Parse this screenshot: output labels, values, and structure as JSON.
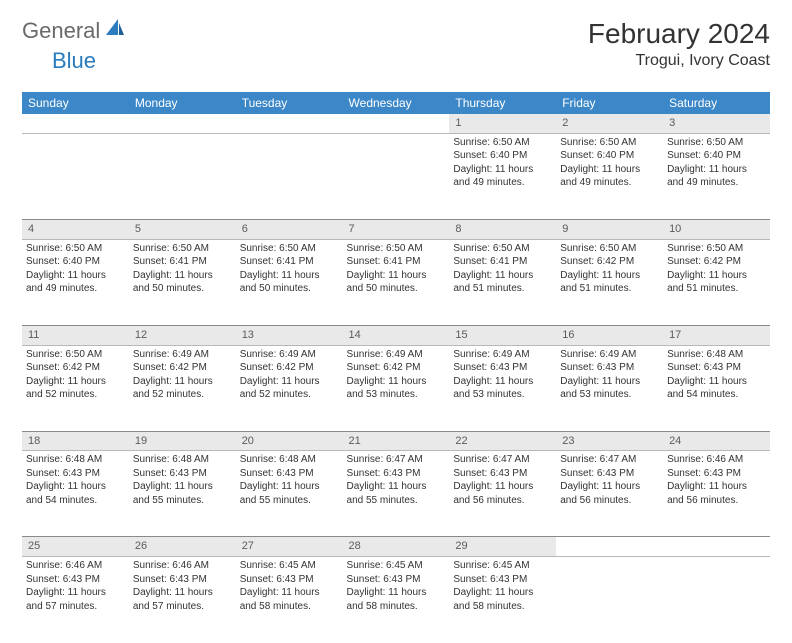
{
  "brand": {
    "general": "General",
    "blue": "Blue"
  },
  "title": {
    "month": "February 2024",
    "location": "Trogui, Ivory Coast"
  },
  "colors": {
    "header_bg": "#3b87c8",
    "header_fg": "#ffffff",
    "daynum_bg": "#e9e9e9",
    "text": "#333333",
    "logo_gray": "#6a6a6a",
    "logo_blue": "#2b7bbf"
  },
  "daysOfWeek": [
    "Sunday",
    "Monday",
    "Tuesday",
    "Wednesday",
    "Thursday",
    "Friday",
    "Saturday"
  ],
  "weeks": [
    [
      null,
      null,
      null,
      null,
      {
        "n": "1",
        "sr": "Sunrise: 6:50 AM",
        "ss": "Sunset: 6:40 PM",
        "d1": "Daylight: 11 hours",
        "d2": "and 49 minutes."
      },
      {
        "n": "2",
        "sr": "Sunrise: 6:50 AM",
        "ss": "Sunset: 6:40 PM",
        "d1": "Daylight: 11 hours",
        "d2": "and 49 minutes."
      },
      {
        "n": "3",
        "sr": "Sunrise: 6:50 AM",
        "ss": "Sunset: 6:40 PM",
        "d1": "Daylight: 11 hours",
        "d2": "and 49 minutes."
      }
    ],
    [
      {
        "n": "4",
        "sr": "Sunrise: 6:50 AM",
        "ss": "Sunset: 6:40 PM",
        "d1": "Daylight: 11 hours",
        "d2": "and 49 minutes."
      },
      {
        "n": "5",
        "sr": "Sunrise: 6:50 AM",
        "ss": "Sunset: 6:41 PM",
        "d1": "Daylight: 11 hours",
        "d2": "and 50 minutes."
      },
      {
        "n": "6",
        "sr": "Sunrise: 6:50 AM",
        "ss": "Sunset: 6:41 PM",
        "d1": "Daylight: 11 hours",
        "d2": "and 50 minutes."
      },
      {
        "n": "7",
        "sr": "Sunrise: 6:50 AM",
        "ss": "Sunset: 6:41 PM",
        "d1": "Daylight: 11 hours",
        "d2": "and 50 minutes."
      },
      {
        "n": "8",
        "sr": "Sunrise: 6:50 AM",
        "ss": "Sunset: 6:41 PM",
        "d1": "Daylight: 11 hours",
        "d2": "and 51 minutes."
      },
      {
        "n": "9",
        "sr": "Sunrise: 6:50 AM",
        "ss": "Sunset: 6:42 PM",
        "d1": "Daylight: 11 hours",
        "d2": "and 51 minutes."
      },
      {
        "n": "10",
        "sr": "Sunrise: 6:50 AM",
        "ss": "Sunset: 6:42 PM",
        "d1": "Daylight: 11 hours",
        "d2": "and 51 minutes."
      }
    ],
    [
      {
        "n": "11",
        "sr": "Sunrise: 6:50 AM",
        "ss": "Sunset: 6:42 PM",
        "d1": "Daylight: 11 hours",
        "d2": "and 52 minutes."
      },
      {
        "n": "12",
        "sr": "Sunrise: 6:49 AM",
        "ss": "Sunset: 6:42 PM",
        "d1": "Daylight: 11 hours",
        "d2": "and 52 minutes."
      },
      {
        "n": "13",
        "sr": "Sunrise: 6:49 AM",
        "ss": "Sunset: 6:42 PM",
        "d1": "Daylight: 11 hours",
        "d2": "and 52 minutes."
      },
      {
        "n": "14",
        "sr": "Sunrise: 6:49 AM",
        "ss": "Sunset: 6:42 PM",
        "d1": "Daylight: 11 hours",
        "d2": "and 53 minutes."
      },
      {
        "n": "15",
        "sr": "Sunrise: 6:49 AM",
        "ss": "Sunset: 6:43 PM",
        "d1": "Daylight: 11 hours",
        "d2": "and 53 minutes."
      },
      {
        "n": "16",
        "sr": "Sunrise: 6:49 AM",
        "ss": "Sunset: 6:43 PM",
        "d1": "Daylight: 11 hours",
        "d2": "and 53 minutes."
      },
      {
        "n": "17",
        "sr": "Sunrise: 6:48 AM",
        "ss": "Sunset: 6:43 PM",
        "d1": "Daylight: 11 hours",
        "d2": "and 54 minutes."
      }
    ],
    [
      {
        "n": "18",
        "sr": "Sunrise: 6:48 AM",
        "ss": "Sunset: 6:43 PM",
        "d1": "Daylight: 11 hours",
        "d2": "and 54 minutes."
      },
      {
        "n": "19",
        "sr": "Sunrise: 6:48 AM",
        "ss": "Sunset: 6:43 PM",
        "d1": "Daylight: 11 hours",
        "d2": "and 55 minutes."
      },
      {
        "n": "20",
        "sr": "Sunrise: 6:48 AM",
        "ss": "Sunset: 6:43 PM",
        "d1": "Daylight: 11 hours",
        "d2": "and 55 minutes."
      },
      {
        "n": "21",
        "sr": "Sunrise: 6:47 AM",
        "ss": "Sunset: 6:43 PM",
        "d1": "Daylight: 11 hours",
        "d2": "and 55 minutes."
      },
      {
        "n": "22",
        "sr": "Sunrise: 6:47 AM",
        "ss": "Sunset: 6:43 PM",
        "d1": "Daylight: 11 hours",
        "d2": "and 56 minutes."
      },
      {
        "n": "23",
        "sr": "Sunrise: 6:47 AM",
        "ss": "Sunset: 6:43 PM",
        "d1": "Daylight: 11 hours",
        "d2": "and 56 minutes."
      },
      {
        "n": "24",
        "sr": "Sunrise: 6:46 AM",
        "ss": "Sunset: 6:43 PM",
        "d1": "Daylight: 11 hours",
        "d2": "and 56 minutes."
      }
    ],
    [
      {
        "n": "25",
        "sr": "Sunrise: 6:46 AM",
        "ss": "Sunset: 6:43 PM",
        "d1": "Daylight: 11 hours",
        "d2": "and 57 minutes."
      },
      {
        "n": "26",
        "sr": "Sunrise: 6:46 AM",
        "ss": "Sunset: 6:43 PM",
        "d1": "Daylight: 11 hours",
        "d2": "and 57 minutes."
      },
      {
        "n": "27",
        "sr": "Sunrise: 6:45 AM",
        "ss": "Sunset: 6:43 PM",
        "d1": "Daylight: 11 hours",
        "d2": "and 58 minutes."
      },
      {
        "n": "28",
        "sr": "Sunrise: 6:45 AM",
        "ss": "Sunset: 6:43 PM",
        "d1": "Daylight: 11 hours",
        "d2": "and 58 minutes."
      },
      {
        "n": "29",
        "sr": "Sunrise: 6:45 AM",
        "ss": "Sunset: 6:43 PM",
        "d1": "Daylight: 11 hours",
        "d2": "and 58 minutes."
      },
      null,
      null
    ]
  ]
}
